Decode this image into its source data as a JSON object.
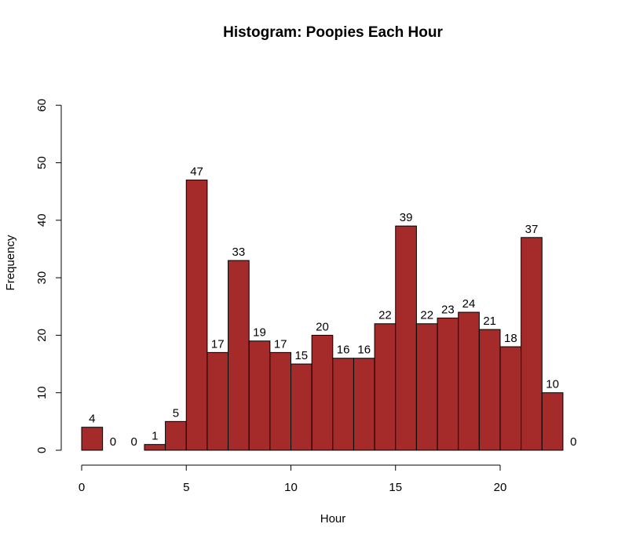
{
  "chart_data": {
    "type": "bar",
    "title": "Histogram: Poopies Each Hour",
    "xlabel": "Hour",
    "ylabel": "Frequency",
    "bin_edges": [
      0,
      1,
      2,
      3,
      4,
      5,
      6,
      7,
      8,
      9,
      10,
      11,
      12,
      13,
      14,
      15,
      16,
      17,
      18,
      19,
      20,
      21,
      22,
      23,
      24
    ],
    "values": [
      4,
      0,
      0,
      1,
      5,
      47,
      17,
      33,
      19,
      17,
      15,
      20,
      16,
      16,
      22,
      39,
      22,
      23,
      24,
      21,
      18,
      37,
      10,
      0
    ],
    "xlim": [
      0,
      24
    ],
    "ylim": [
      0,
      60
    ],
    "x_ticks": [
      0,
      5,
      10,
      15,
      20
    ],
    "y_ticks": [
      0,
      10,
      20,
      30,
      40,
      50,
      60
    ],
    "bar_color": "#a52a2a",
    "grid": false,
    "data_labels": true
  }
}
